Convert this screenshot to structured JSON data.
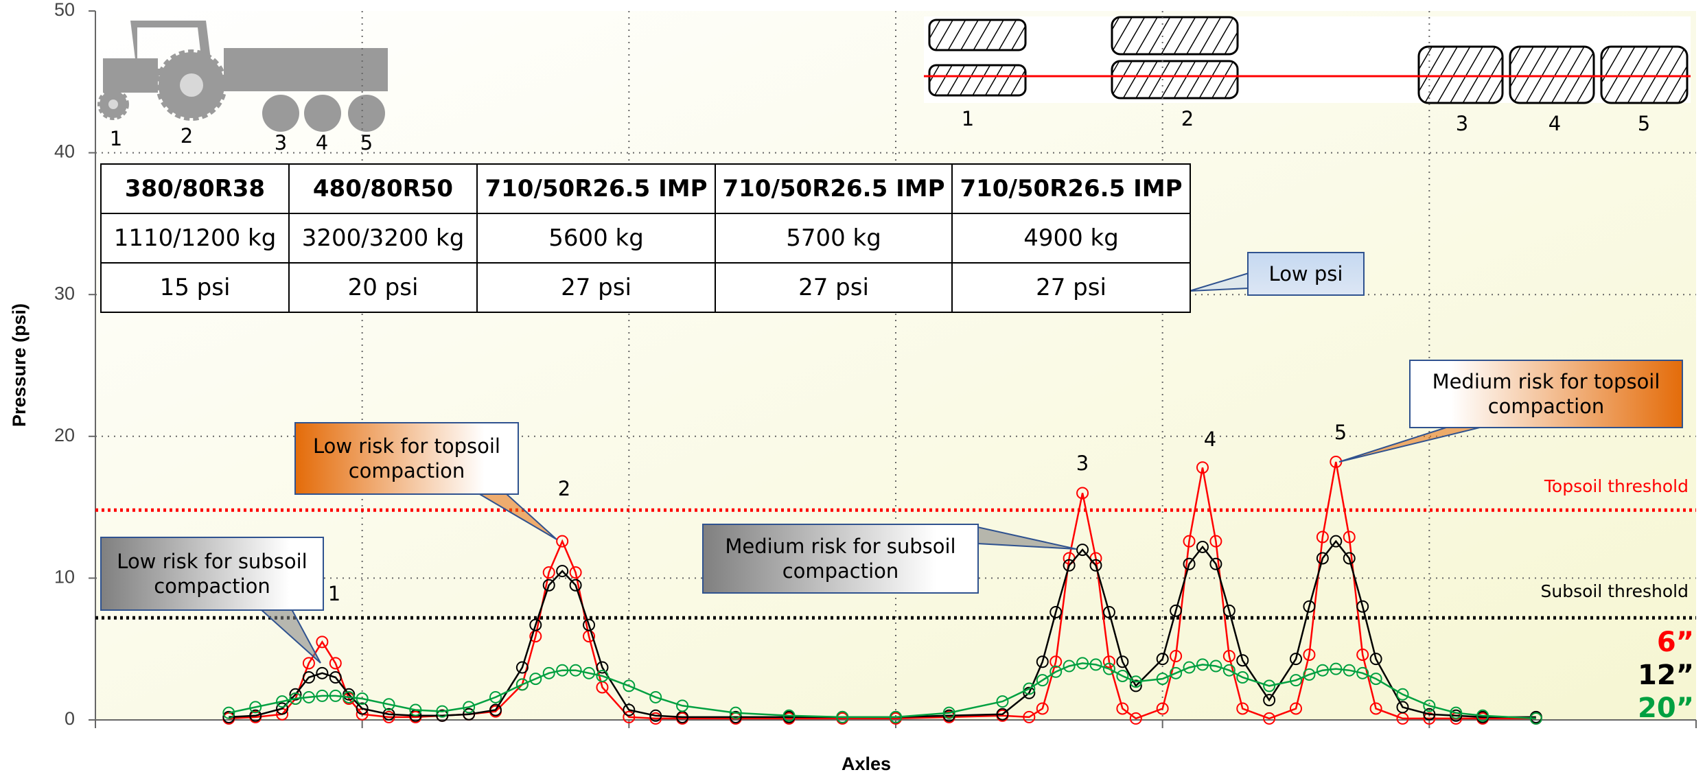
{
  "chart_data": {
    "type": "line",
    "y_label": "Pressure (psi)",
    "x_label": "Axles",
    "x": [
      0.5,
      0.6,
      0.7,
      0.75,
      0.8,
      0.85,
      0.9,
      0.95,
      1.0,
      1.1,
      1.2,
      1.3,
      1.4,
      1.5,
      1.6,
      1.65,
      1.7,
      1.75,
      1.8,
      1.85,
      1.9,
      2.0,
      2.1,
      2.2,
      2.4,
      2.6,
      2.8,
      3.0,
      3.2,
      3.4,
      3.5,
      3.55,
      3.6,
      3.65,
      3.7,
      3.75,
      3.8,
      3.85,
      3.9,
      4.0,
      4.05,
      4.1,
      4.15,
      4.2,
      4.25,
      4.3,
      4.4,
      4.5,
      4.55,
      4.6,
      4.65,
      4.7,
      4.75,
      4.8,
      4.9,
      5.0,
      5.1,
      5.2,
      5.4
    ],
    "series": [
      {
        "name": "6”",
        "color": "#ff0000",
        "values": [
          0.1,
          0.2,
          0.4,
          1.5,
          4.0,
          5.5,
          4.0,
          1.5,
          0.4,
          0.2,
          0.2,
          0.3,
          0.4,
          0.6,
          2.5,
          5.9,
          10.4,
          12.6,
          10.4,
          5.9,
          2.3,
          0.2,
          0.1,
          0.1,
          0.1,
          0.1,
          0.1,
          0.1,
          0.2,
          0.3,
          0.2,
          0.8,
          4.1,
          11.4,
          16.0,
          11.4,
          4.1,
          0.8,
          0.1,
          0.8,
          4.5,
          12.6,
          17.8,
          12.6,
          4.5,
          0.8,
          0.1,
          0.8,
          4.6,
          12.9,
          18.2,
          12.9,
          4.6,
          0.8,
          0.1,
          0.1,
          0.1,
          0.1,
          0.1
        ]
      },
      {
        "name": "12”",
        "color": "#000000",
        "values": [
          0.2,
          0.3,
          0.8,
          1.8,
          3.0,
          3.3,
          3.0,
          1.8,
          0.8,
          0.4,
          0.3,
          0.3,
          0.4,
          0.7,
          3.7,
          6.7,
          9.5,
          10.5,
          9.5,
          6.7,
          3.7,
          0.7,
          0.3,
          0.2,
          0.2,
          0.2,
          0.2,
          0.2,
          0.3,
          0.4,
          1.9,
          4.1,
          7.6,
          10.9,
          12.0,
          10.9,
          7.6,
          4.1,
          2.4,
          4.3,
          7.7,
          11.0,
          12.2,
          11.0,
          7.7,
          4.2,
          1.4,
          4.3,
          8.0,
          11.4,
          12.6,
          11.4,
          8.0,
          4.3,
          0.9,
          0.4,
          0.3,
          0.2,
          0.2
        ]
      },
      {
        "name": "20”",
        "color": "#00a040",
        "values": [
          0.5,
          0.9,
          1.3,
          1.5,
          1.6,
          1.7,
          1.7,
          1.6,
          1.5,
          1.1,
          0.7,
          0.6,
          0.9,
          1.6,
          2.5,
          2.9,
          3.3,
          3.5,
          3.5,
          3.3,
          3.1,
          2.4,
          1.6,
          1.0,
          0.5,
          0.3,
          0.2,
          0.2,
          0.5,
          1.3,
          2.2,
          2.8,
          3.4,
          3.8,
          4.0,
          3.9,
          3.6,
          3.1,
          2.7,
          2.9,
          3.3,
          3.7,
          3.9,
          3.8,
          3.5,
          3.0,
          2.4,
          2.8,
          3.2,
          3.5,
          3.6,
          3.5,
          3.3,
          2.9,
          1.8,
          1.0,
          0.5,
          0.3,
          0.1
        ]
      }
    ],
    "xlim": [
      0,
      6
    ],
    "xticks": [
      0,
      1,
      2,
      3,
      4,
      5,
      6
    ],
    "ylim": [
      0,
      50
    ],
    "yticks": [
      0,
      10,
      20,
      30,
      40,
      50
    ],
    "grid": true,
    "thresholds": [
      {
        "label": "Topsoil threshold",
        "value": 14.8,
        "color": "#ff0000"
      },
      {
        "label": "Subsoil threshold",
        "value": 7.2,
        "color": "#000000"
      }
    ],
    "peak_labels": [
      "1",
      "2",
      "3",
      "4",
      "5"
    ],
    "callouts": [
      {
        "text": "Low risk for subsoil compaction",
        "color": "#808080"
      },
      {
        "text": "Low risk for topsoil compaction",
        "color": "#e46c0a"
      },
      {
        "text": "Medium risk for subsoil compaction",
        "color": "#808080"
      },
      {
        "text": "Medium risk for topsoil compaction",
        "color": "#e46c0a"
      },
      {
        "text": "Low psi",
        "color": "#c6d9f1"
      }
    ]
  },
  "table": {
    "header": [
      "380/80R38",
      "480/80R50",
      "710/50R26.5 IMP",
      "710/50R26.5 IMP",
      "710/50R26.5 IMP"
    ],
    "rows": [
      [
        "1110/1200 kg",
        "3200/3200 kg",
        "5600 kg",
        "5700 kg",
        "4900 kg"
      ],
      [
        "15 psi",
        "20 psi",
        "27 psi",
        "27 psi",
        "27 psi"
      ]
    ]
  },
  "tractor_labels": [
    "1",
    "2",
    "3",
    "4",
    "5"
  ],
  "tire_labels": [
    "1",
    "2",
    "3",
    "4",
    "5"
  ]
}
